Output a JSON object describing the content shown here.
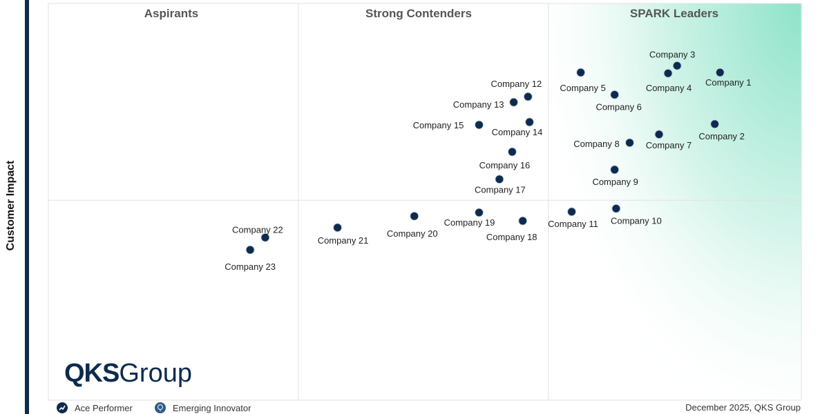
{
  "chart_data": {
    "type": "scatter",
    "title": "",
    "xlabel": "",
    "ylabel": "Customer Impact",
    "xlim": [
      0,
      100
    ],
    "ylim": [
      0,
      100
    ],
    "grid": false,
    "quadrants": {
      "x_split": 33.2,
      "x_split2": 66.4,
      "y_split": 50.4,
      "labels": [
        "Aspirants",
        "Strong Contenders",
        "SPARK Leaders"
      ]
    },
    "leader_gradient_color": "#8ee3c8",
    "point_color": "#0d2b4e",
    "points": [
      {
        "label": "Company 1",
        "x": 89.2,
        "y": 82.6
      },
      {
        "label": "Company 2",
        "x": 88.5,
        "y": 69.6
      },
      {
        "label": "Company 3",
        "x": 83.5,
        "y": 84.3
      },
      {
        "label": "Company 4",
        "x": 82.3,
        "y": 82.4
      },
      {
        "label": "Company 5",
        "x": 70.7,
        "y": 82.6
      },
      {
        "label": "Company 6",
        "x": 75.2,
        "y": 77.0
      },
      {
        "label": "Company 7",
        "x": 81.1,
        "y": 67.0
      },
      {
        "label": "Company 8",
        "x": 77.2,
        "y": 64.9
      },
      {
        "label": "Company 9",
        "x": 75.2,
        "y": 58.1
      },
      {
        "label": "Company 10",
        "x": 75.4,
        "y": 48.3
      },
      {
        "label": "Company 11",
        "x": 69.5,
        "y": 47.5
      },
      {
        "label": "Company 12",
        "x": 63.7,
        "y": 76.5
      },
      {
        "label": "Company 13",
        "x": 61.8,
        "y": 75.1
      },
      {
        "label": "Company 14",
        "x": 63.9,
        "y": 70.1
      },
      {
        "label": "Company 15",
        "x": 57.2,
        "y": 69.4
      },
      {
        "label": "Company 16",
        "x": 61.6,
        "y": 62.6
      },
      {
        "label": "Company 17",
        "x": 59.9,
        "y": 55.7
      },
      {
        "label": "Company 18",
        "x": 63.0,
        "y": 45.2
      },
      {
        "label": "Company 19",
        "x": 57.2,
        "y": 47.3
      },
      {
        "label": "Company 20",
        "x": 48.6,
        "y": 46.4
      },
      {
        "label": "Company 21",
        "x": 38.4,
        "y": 43.5
      },
      {
        "label": "Company 22",
        "x": 28.8,
        "y": 41.0
      },
      {
        "label": "Company 23",
        "x": 26.8,
        "y": 37.9
      }
    ]
  },
  "logo": {
    "bold": "QKS",
    "rest": "Group"
  },
  "legend": [
    {
      "icon": "ace-performer-icon",
      "label": "Ace Performer"
    },
    {
      "icon": "emerging-innovator-icon",
      "label": "Emerging Innovator"
    }
  ],
  "footer": "December  2025, QKS Group"
}
